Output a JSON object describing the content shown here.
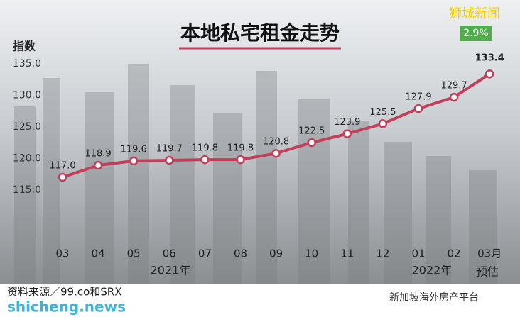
{
  "chart_data": {
    "type": "line",
    "title": "本地私宅租金走势",
    "y_label": "指数",
    "categories": [
      "03",
      "04",
      "05",
      "06",
      "07",
      "08",
      "09",
      "10",
      "11",
      "12",
      "01",
      "02",
      "03月"
    ],
    "series": [
      {
        "name": "本地私宅租金指数",
        "color": "#c0405a",
        "values": [
          117.0,
          118.9,
          119.6,
          119.7,
          119.8,
          119.8,
          120.8,
          122.5,
          123.9,
          125.5,
          127.9,
          129.7,
          133.4
        ],
        "value_labels": [
          "117.0",
          "118.9",
          "119.6",
          "119.7",
          "119.8",
          "119.8",
          "120.8",
          "122.5",
          "123.9",
          "125.5",
          "127.9",
          "129.7",
          "133.4"
        ]
      }
    ],
    "ylim": [
      108,
      138
    ],
    "yticks": [
      {
        "value": 115,
        "label": "115.0"
      },
      {
        "value": 120,
        "label": "120.0"
      },
      {
        "value": 125,
        "label": "125.0"
      },
      {
        "value": 130,
        "label": "130.0"
      },
      {
        "value": 135,
        "label": "135.0"
      }
    ],
    "grid": false,
    "year_labels": [
      "2021年",
      "2022年"
    ],
    "forecast_label": "预估",
    "badge": "2.9%",
    "source": "资料来源／99.co和SRX",
    "watermark_top": "狮城新闻",
    "watermark_site": "shicheng.news",
    "watermark_platform": "新加坡海外房产平台"
  }
}
